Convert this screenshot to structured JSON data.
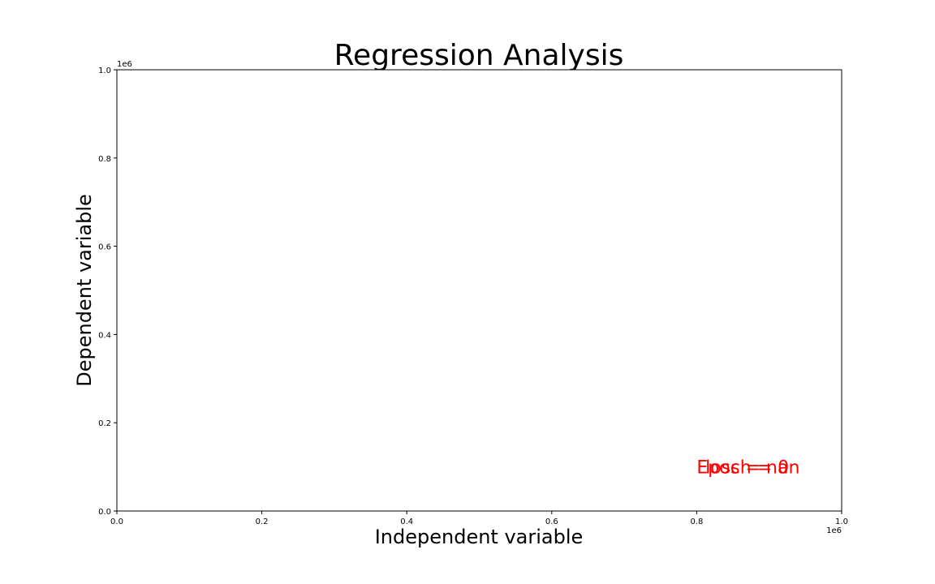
{
  "chart_data": {
    "type": "scatter",
    "title": "Regression Analysis",
    "xlabel": "Independent variable",
    "ylabel": "Dependent variable",
    "xlim": [
      0,
      1000000
    ],
    "ylim": [
      0,
      1000000
    ],
    "x_offset_label": "1e6",
    "y_offset_label": "1e6",
    "xticks": [
      "0.0",
      "0.2",
      "0.4",
      "0.6",
      "0.8",
      "1.0"
    ],
    "yticks": [
      "0.0",
      "0.2",
      "0.4",
      "0.6",
      "0.8",
      "1.0"
    ],
    "grid": false,
    "points": [],
    "annotations": [
      {
        "text": "Epoch = 0",
        "x": 800000,
        "y": 100000,
        "color": "#ff0000"
      },
      {
        "text": "loss = nan",
        "x": 812000,
        "y": 100000,
        "color": "#ff0000"
      }
    ]
  }
}
